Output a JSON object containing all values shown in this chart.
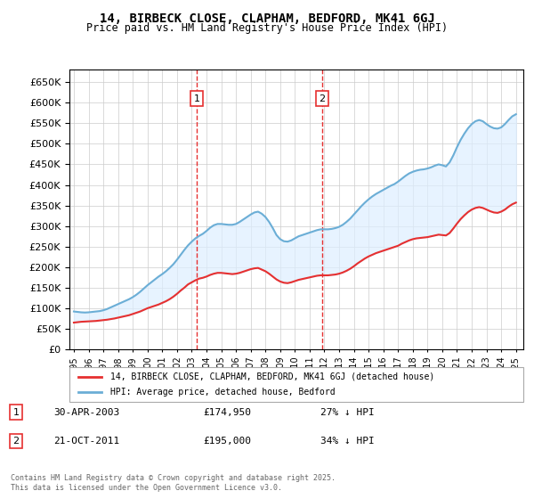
{
  "title": "14, BIRBECK CLOSE, CLAPHAM, BEDFORD, MK41 6GJ",
  "subtitle": "Price paid vs. HM Land Registry's House Price Index (HPI)",
  "ylabel": "",
  "ylim": [
    0,
    680000
  ],
  "yticks": [
    0,
    50000,
    100000,
    150000,
    200000,
    250000,
    300000,
    350000,
    400000,
    450000,
    500000,
    550000,
    600000,
    650000
  ],
  "xlim_start": 1995.0,
  "xlim_end": 2025.5,
  "hpi_color": "#6baed6",
  "price_color": "#e63030",
  "vline_color": "#e63030",
  "bg_color": "#ffffff",
  "grid_color": "#cccccc",
  "annotation_fill": "#ddeeff",
  "legend_label_price": "14, BIRBECK CLOSE, CLAPHAM, BEDFORD, MK41 6GJ (detached house)",
  "legend_label_hpi": "HPI: Average price, detached house, Bedford",
  "event1_date": 2003.33,
  "event1_label": "1",
  "event1_price": 174950,
  "event1_text": "30-APR-2003",
  "event1_pct": "27% ↓ HPI",
  "event2_date": 2011.83,
  "event2_label": "2",
  "event2_price": 195000,
  "event2_text": "21-OCT-2011",
  "event2_pct": "34% ↓ HPI",
  "footer": "Contains HM Land Registry data © Crown copyright and database right 2025.\nThis data is licensed under the Open Government Licence v3.0.",
  "hpi_data_x": [
    1995.0,
    1995.25,
    1995.5,
    1995.75,
    1996.0,
    1996.25,
    1996.5,
    1996.75,
    1997.0,
    1997.25,
    1997.5,
    1997.75,
    1998.0,
    1998.25,
    1998.5,
    1998.75,
    1999.0,
    1999.25,
    1999.5,
    1999.75,
    2000.0,
    2000.25,
    2000.5,
    2000.75,
    2001.0,
    2001.25,
    2001.5,
    2001.75,
    2002.0,
    2002.25,
    2002.5,
    2002.75,
    2003.0,
    2003.25,
    2003.5,
    2003.75,
    2004.0,
    2004.25,
    2004.5,
    2004.75,
    2005.0,
    2005.25,
    2005.5,
    2005.75,
    2006.0,
    2006.25,
    2006.5,
    2006.75,
    2007.0,
    2007.25,
    2007.5,
    2007.75,
    2008.0,
    2008.25,
    2008.5,
    2008.75,
    2009.0,
    2009.25,
    2009.5,
    2009.75,
    2010.0,
    2010.25,
    2010.5,
    2010.75,
    2011.0,
    2011.25,
    2011.5,
    2011.75,
    2012.0,
    2012.25,
    2012.5,
    2012.75,
    2013.0,
    2013.25,
    2013.5,
    2013.75,
    2014.0,
    2014.25,
    2014.5,
    2014.75,
    2015.0,
    2015.25,
    2015.5,
    2015.75,
    2016.0,
    2016.25,
    2016.5,
    2016.75,
    2017.0,
    2017.25,
    2017.5,
    2017.75,
    2018.0,
    2018.25,
    2018.5,
    2018.75,
    2019.0,
    2019.25,
    2019.5,
    2019.75,
    2020.0,
    2020.25,
    2020.5,
    2020.75,
    2021.0,
    2021.25,
    2021.5,
    2021.75,
    2022.0,
    2022.25,
    2022.5,
    2022.75,
    2023.0,
    2023.25,
    2023.5,
    2023.75,
    2024.0,
    2024.25,
    2024.5,
    2024.75,
    2025.0
  ],
  "hpi_data_y": [
    92000,
    91000,
    90000,
    89500,
    90000,
    91000,
    92000,
    93000,
    95000,
    98000,
    102000,
    106000,
    110000,
    114000,
    118000,
    122000,
    127000,
    133000,
    140000,
    148000,
    156000,
    163000,
    170000,
    177000,
    183000,
    190000,
    198000,
    207000,
    218000,
    230000,
    242000,
    253000,
    262000,
    270000,
    276000,
    281000,
    288000,
    296000,
    302000,
    305000,
    305000,
    304000,
    303000,
    303000,
    305000,
    310000,
    316000,
    322000,
    328000,
    333000,
    335000,
    330000,
    322000,
    310000,
    295000,
    278000,
    268000,
    263000,
    262000,
    265000,
    270000,
    275000,
    278000,
    281000,
    284000,
    287000,
    290000,
    292000,
    292000,
    292000,
    293000,
    295000,
    298000,
    303000,
    310000,
    318000,
    328000,
    338000,
    348000,
    357000,
    365000,
    372000,
    378000,
    383000,
    388000,
    393000,
    398000,
    402000,
    408000,
    415000,
    422000,
    428000,
    432000,
    435000,
    437000,
    438000,
    440000,
    443000,
    447000,
    450000,
    448000,
    445000,
    455000,
    472000,
    492000,
    510000,
    525000,
    538000,
    548000,
    555000,
    558000,
    555000,
    548000,
    542000,
    538000,
    537000,
    540000,
    548000,
    558000,
    567000,
    572000
  ],
  "price_data_x": [
    1995.0,
    1995.25,
    1995.5,
    1995.75,
    1996.0,
    1996.25,
    1996.5,
    1996.75,
    1997.0,
    1997.25,
    1997.5,
    1997.75,
    1998.0,
    1998.25,
    1998.5,
    1998.75,
    1999.0,
    1999.25,
    1999.5,
    1999.75,
    2000.0,
    2000.25,
    2000.5,
    2000.75,
    2001.0,
    2001.25,
    2001.5,
    2001.75,
    2002.0,
    2002.25,
    2002.5,
    2002.75,
    2003.0,
    2003.25,
    2003.5,
    2003.75,
    2004.0,
    2004.25,
    2004.5,
    2004.75,
    2005.0,
    2005.25,
    2005.5,
    2005.75,
    2006.0,
    2006.25,
    2006.5,
    2006.75,
    2007.0,
    2007.25,
    2007.5,
    2007.75,
    2008.0,
    2008.25,
    2008.5,
    2008.75,
    2009.0,
    2009.25,
    2009.5,
    2009.75,
    2010.0,
    2010.25,
    2010.5,
    2010.75,
    2011.0,
    2011.25,
    2011.5,
    2011.75,
    2012.0,
    2012.25,
    2012.5,
    2012.75,
    2013.0,
    2013.25,
    2013.5,
    2013.75,
    2014.0,
    2014.25,
    2014.5,
    2014.75,
    2015.0,
    2015.25,
    2015.5,
    2015.75,
    2016.0,
    2016.25,
    2016.5,
    2016.75,
    2017.0,
    2017.25,
    2017.5,
    2017.75,
    2018.0,
    2018.25,
    2018.5,
    2018.75,
    2019.0,
    2019.25,
    2019.5,
    2019.75,
    2020.0,
    2020.25,
    2020.5,
    2020.75,
    2021.0,
    2021.25,
    2021.5,
    2021.75,
    2022.0,
    2022.25,
    2022.5,
    2022.75,
    2023.0,
    2023.25,
    2023.5,
    2023.75,
    2024.0,
    2024.25,
    2024.5,
    2024.75,
    2025.0
  ],
  "price_data_y": [
    65000,
    66000,
    67000,
    67500,
    68000,
    68500,
    69000,
    70000,
    71000,
    72000,
    73500,
    75000,
    77000,
    79000,
    81000,
    83000,
    86000,
    89000,
    92000,
    96000,
    100000,
    103000,
    106000,
    109000,
    113000,
    117000,
    122000,
    128000,
    135000,
    143000,
    150000,
    158000,
    163000,
    168000,
    172000,
    174000,
    177000,
    181000,
    184000,
    186000,
    186000,
    185000,
    184000,
    183000,
    184000,
    186000,
    189000,
    192000,
    195000,
    197000,
    198000,
    194000,
    190000,
    184000,
    177000,
    170000,
    165000,
    162000,
    161000,
    163000,
    166000,
    169000,
    171000,
    173000,
    175000,
    177000,
    179000,
    180000,
    180000,
    180000,
    181000,
    182000,
    184000,
    187000,
    191000,
    196000,
    202000,
    209000,
    215000,
    221000,
    226000,
    230000,
    234000,
    237000,
    240000,
    243000,
    246000,
    249000,
    252000,
    257000,
    261000,
    265000,
    268000,
    270000,
    271000,
    272000,
    273000,
    275000,
    277000,
    279000,
    278000,
    277000,
    283000,
    294000,
    306000,
    317000,
    326000,
    334000,
    340000,
    344000,
    346000,
    344000,
    340000,
    336000,
    333000,
    332000,
    335000,
    340000,
    347000,
    353000,
    357000
  ]
}
